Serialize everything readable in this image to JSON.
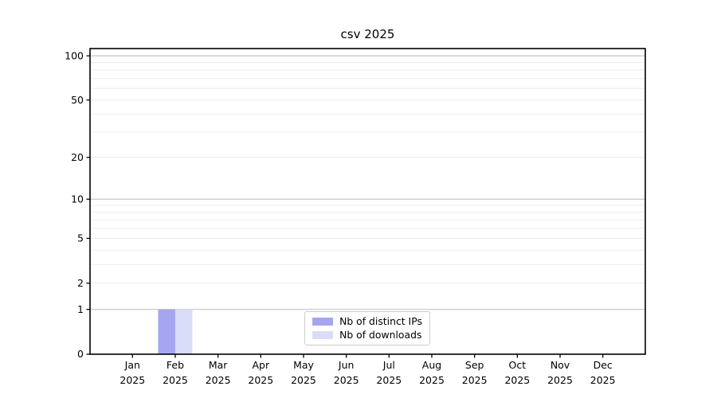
{
  "figure": {
    "background": "#ffffff",
    "axis_color": "#000000"
  },
  "chart_data": {
    "type": "bar",
    "title": "csv 2025",
    "categories": [
      "Jan",
      "Feb",
      "Mar",
      "Apr",
      "May",
      "Jun",
      "Jul",
      "Aug",
      "Sep",
      "Oct",
      "Nov",
      "Dec"
    ],
    "year_label": "2025",
    "series": [
      {
        "name": "Nb of distinct IPs",
        "color": "#a5a6ef",
        "values": [
          0,
          1,
          0,
          0,
          0,
          0,
          0,
          0,
          0,
          0,
          0,
          0
        ]
      },
      {
        "name": "Nb of downloads",
        "color": "#dadcf8",
        "values": [
          0,
          1,
          0,
          0,
          0,
          0,
          0,
          0,
          0,
          0,
          0,
          0
        ]
      }
    ],
    "xlabel": "",
    "ylabel": "",
    "yscale": "log1p",
    "ylim": [
      0,
      112
    ],
    "yticks": [
      0,
      1,
      2,
      5,
      10,
      20,
      50,
      100
    ],
    "gridlines": {
      "major": [
        1,
        10,
        100
      ],
      "minor": [
        2,
        3,
        4,
        5,
        6,
        7,
        8,
        9,
        20,
        30,
        40,
        50,
        60,
        70,
        80,
        90
      ],
      "major_color": "#c6c6c6",
      "minor_color": "#ececec"
    },
    "legend": {
      "position": "lower center"
    }
  }
}
